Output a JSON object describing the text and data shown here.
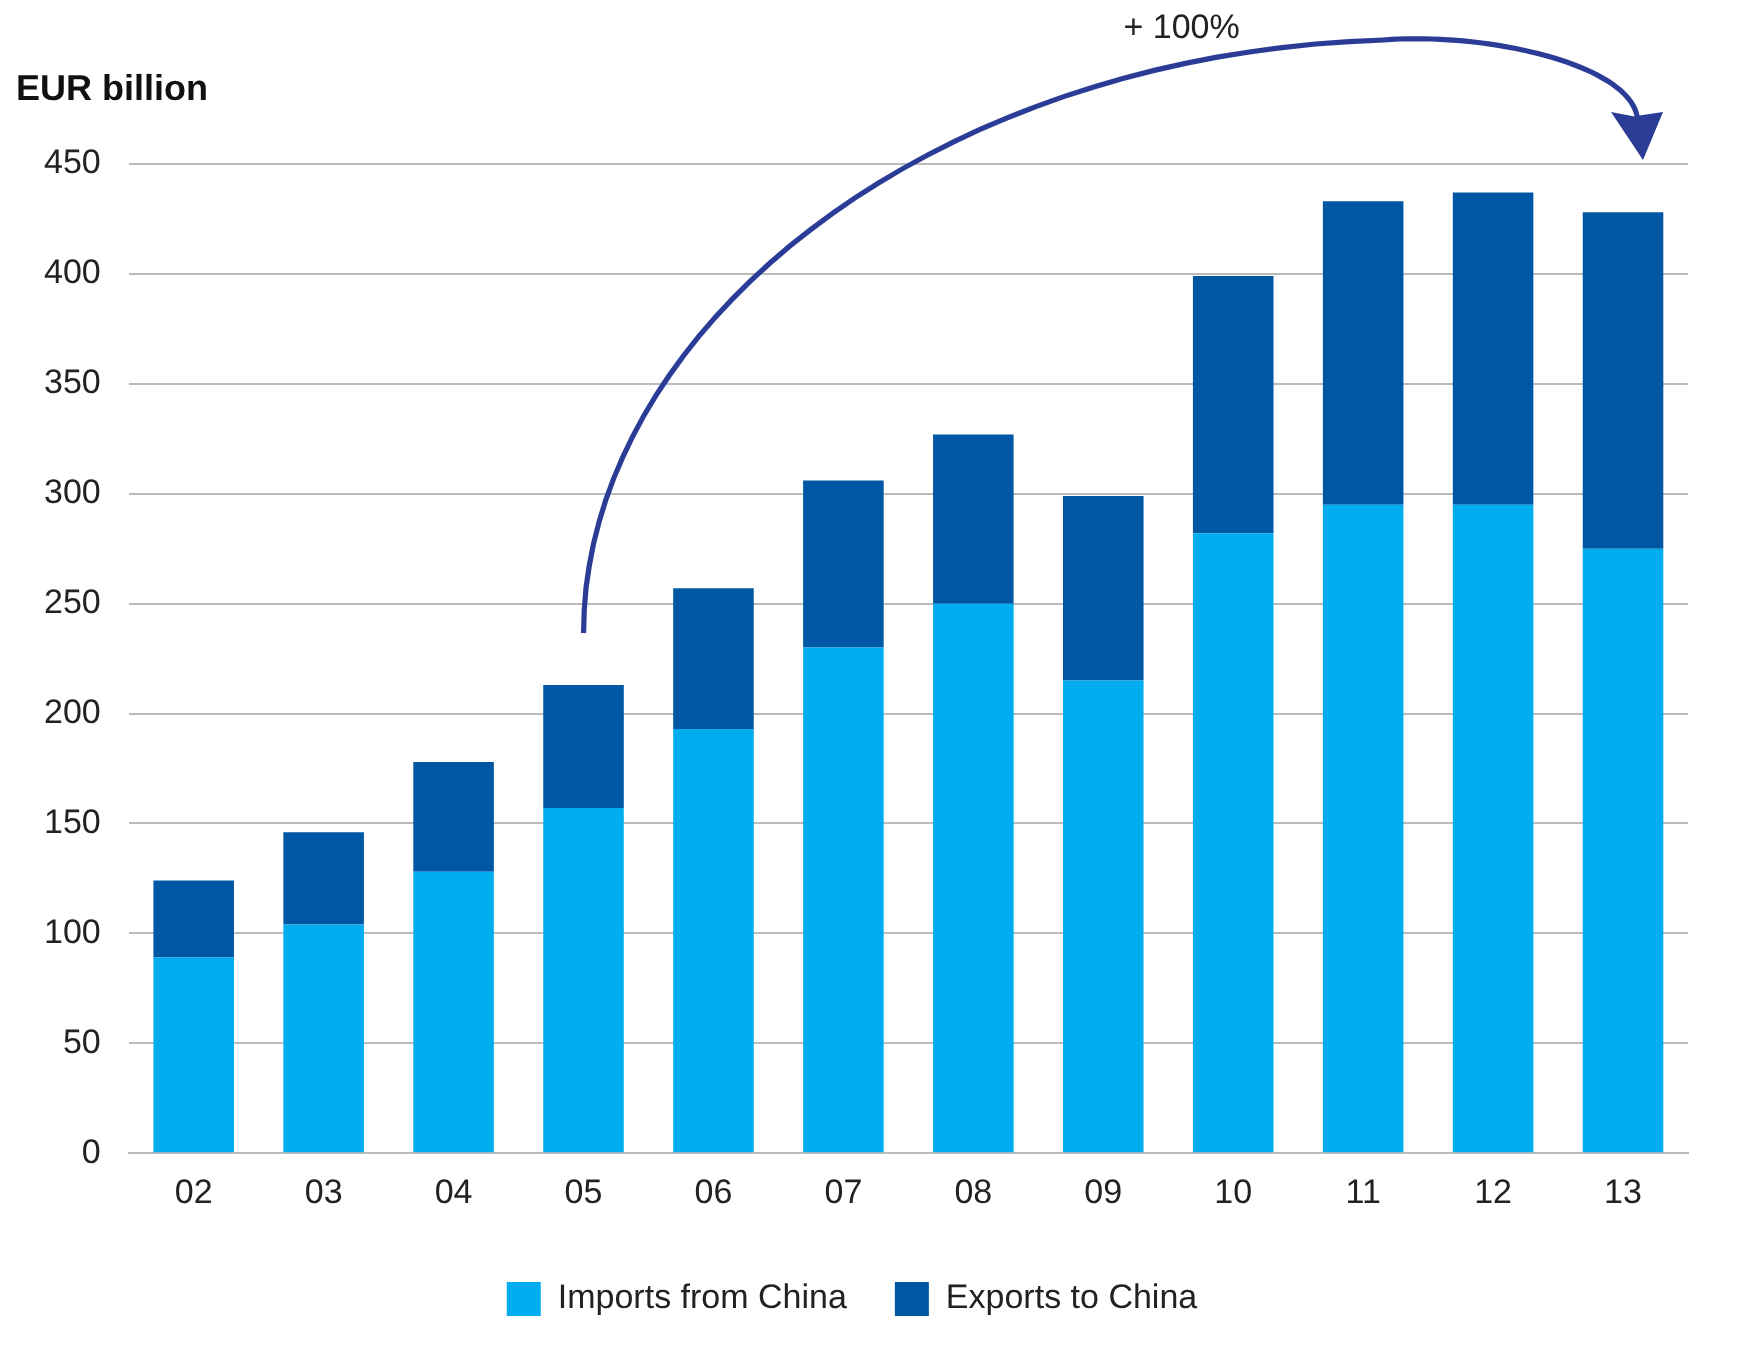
{
  "chart_data": {
    "type": "bar",
    "stacked": true,
    "ylabel": "EUR billion",
    "categories": [
      "02",
      "03",
      "04",
      "05",
      "06",
      "07",
      "08",
      "09",
      "10",
      "11",
      "12",
      "13"
    ],
    "series": [
      {
        "name": "Imports from China",
        "color": "#00aeef",
        "values": [
          89,
          104,
          128,
          157,
          193,
          230,
          250,
          215,
          282,
          295,
          295,
          275
        ]
      },
      {
        "name": "Exports to China",
        "color": "#0057a4",
        "values": [
          35,
          42,
          50,
          56,
          64,
          76,
          77,
          84,
          117,
          138,
          142,
          153
        ]
      }
    ],
    "ylim": [
      0,
      450
    ],
    "yticks": [
      0,
      50,
      100,
      150,
      200,
      250,
      300,
      350,
      400,
      450
    ],
    "grid": "y",
    "legend": "bottom",
    "annotations": [
      "+ 100%"
    ]
  }
}
